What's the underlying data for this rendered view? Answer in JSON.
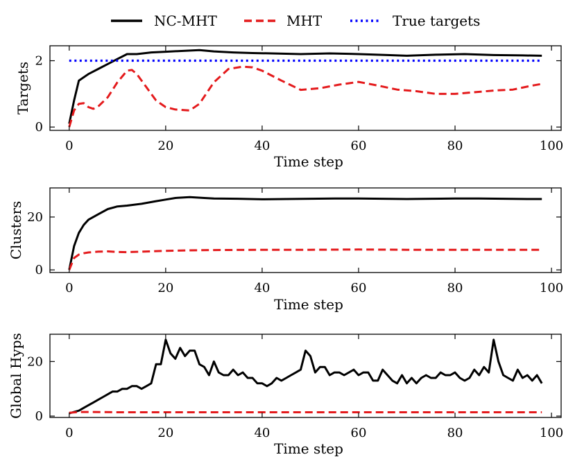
{
  "chart_data": {
    "type": "line",
    "legend": {
      "placement": "top-center",
      "entries": [
        {
          "label": "NC-MHT",
          "color": "#000000",
          "style": "solid"
        },
        {
          "label": "MHT",
          "color": "#e41a1c",
          "style": "dashed"
        },
        {
          "label": "True targets",
          "color": "#0000ff",
          "style": "dotted"
        }
      ]
    },
    "subplots": [
      {
        "id": "targets",
        "xlabel": "Time step",
        "ylabel": "Targets",
        "xlim": [
          -4,
          102
        ],
        "ylim": [
          -0.1,
          2.45
        ],
        "xticks": [
          0,
          20,
          40,
          60,
          80,
          100
        ],
        "yticks": [
          0,
          2
        ],
        "series": [
          {
            "name": "NC-MHT",
            "color": "#000000",
            "style": "solid",
            "x": [
              0,
              1,
              2,
              4,
              6,
              8,
              10,
              12,
              14,
              17,
              20,
              24,
              27,
              30,
              34,
              38,
              42,
              48,
              54,
              60,
              66,
              70,
              76,
              82,
              88,
              94,
              98
            ],
            "y": [
              0.1,
              0.8,
              1.4,
              1.6,
              1.75,
              1.9,
              2.05,
              2.2,
              2.2,
              2.25,
              2.27,
              2.3,
              2.32,
              2.28,
              2.25,
              2.23,
              2.22,
              2.2,
              2.22,
              2.2,
              2.17,
              2.15,
              2.18,
              2.2,
              2.17,
              2.16,
              2.15
            ]
          },
          {
            "name": "MHT",
            "color": "#e41a1c",
            "style": "dashed",
            "x": [
              0,
              1,
              2,
              3,
              4,
              5,
              6,
              8,
              10,
              12,
              13,
              14,
              16,
              18,
              20,
              22,
              25,
              27,
              30,
              33,
              36,
              38,
              40,
              44,
              48,
              52,
              56,
              60,
              64,
              68,
              72,
              76,
              80,
              84,
              88,
              92,
              96,
              98
            ],
            "y": [
              0.0,
              0.5,
              0.7,
              0.72,
              0.6,
              0.55,
              0.62,
              0.9,
              1.35,
              1.7,
              1.72,
              1.6,
              1.2,
              0.8,
              0.6,
              0.53,
              0.5,
              0.7,
              1.35,
              1.75,
              1.82,
              1.8,
              1.7,
              1.4,
              1.12,
              1.17,
              1.28,
              1.36,
              1.25,
              1.13,
              1.08,
              1.0,
              1.0,
              1.05,
              1.1,
              1.13,
              1.25,
              1.3
            ]
          },
          {
            "name": "True targets",
            "color": "#0000ff",
            "style": "dotted",
            "x": [
              0,
              98
            ],
            "y": [
              2,
              2
            ]
          }
        ]
      },
      {
        "id": "clusters",
        "xlabel": "Time step",
        "ylabel": "Clusters",
        "xlim": [
          -4,
          102
        ],
        "ylim": [
          -1,
          31
        ],
        "xticks": [
          0,
          20,
          40,
          60,
          80,
          100
        ],
        "yticks": [
          0,
          20
        ],
        "series": [
          {
            "name": "NC-MHT",
            "color": "#000000",
            "style": "solid",
            "x": [
              0,
              1,
              2,
              3,
              4,
              6,
              8,
              10,
              12,
              15,
              18,
              20,
              22,
              25,
              28,
              30,
              35,
              40,
              45,
              50,
              55,
              60,
              65,
              70,
              75,
              80,
              85,
              90,
              95,
              98
            ],
            "y": [
              0,
              9,
              14,
              17,
              19,
              21,
              23,
              24,
              24.3,
              25,
              26,
              26.6,
              27.2,
              27.5,
              27.2,
              27.0,
              26.9,
              26.7,
              26.8,
              26.9,
              27.0,
              27.0,
              26.9,
              26.8,
              26.9,
              27.0,
              27.0,
              26.9,
              26.8,
              26.8
            ]
          },
          {
            "name": "MHT",
            "color": "#e41a1c",
            "style": "dashed",
            "x": [
              0,
              1,
              2,
              3,
              4,
              6,
              8,
              10,
              12,
              15,
              20,
              25,
              30,
              40,
              50,
              60,
              70,
              80,
              90,
              98
            ],
            "y": [
              0,
              4.5,
              5.8,
              6.3,
              6.6,
              6.9,
              7.0,
              6.8,
              6.7,
              6.9,
              7.2,
              7.4,
              7.5,
              7.6,
              7.6,
              7.7,
              7.6,
              7.6,
              7.6,
              7.6
            ]
          }
        ]
      },
      {
        "id": "global-hyps",
        "xlabel": "Time step",
        "ylabel": "Global Hyps",
        "xlim": [
          -4,
          102
        ],
        "ylim": [
          -0.5,
          30
        ],
        "xticks": [
          0,
          20,
          40,
          60,
          80,
          100
        ],
        "yticks": [
          0,
          20
        ],
        "series": [
          {
            "name": "NC-MHT",
            "color": "#000000",
            "style": "solid",
            "x": [
              0,
              1,
              2,
              3,
              4,
              5,
              6,
              7,
              8,
              9,
              10,
              11,
              12,
              13,
              14,
              15,
              16,
              17,
              18,
              19,
              20,
              21,
              22,
              23,
              24,
              25,
              26,
              27,
              28,
              29,
              30,
              31,
              32,
              33,
              34,
              35,
              36,
              37,
              38,
              39,
              40,
              41,
              42,
              43,
              44,
              45,
              46,
              47,
              48,
              49,
              50,
              51,
              52,
              53,
              54,
              55,
              56,
              57,
              58,
              59,
              60,
              61,
              62,
              63,
              64,
              65,
              66,
              67,
              68,
              69,
              70,
              71,
              72,
              73,
              74,
              75,
              76,
              77,
              78,
              79,
              80,
              81,
              82,
              83,
              84,
              85,
              86,
              87,
              88,
              89,
              90,
              91,
              92,
              93,
              94,
              95,
              96,
              97,
              98
            ],
            "y": [
              1,
              1.5,
              2,
              3,
              4,
              5,
              6,
              7,
              8,
              9,
              9,
              10,
              10,
              11,
              11,
              10,
              11,
              12,
              19,
              19,
              28,
              23,
              21,
              25,
              22,
              24,
              24,
              19,
              18,
              15,
              20,
              16,
              15,
              15,
              17,
              15,
              16,
              14,
              14,
              12,
              12,
              11,
              12,
              14,
              13,
              14,
              15,
              16,
              17,
              24,
              22,
              16,
              18,
              18,
              15,
              16,
              16,
              15,
              16,
              17,
              15,
              16,
              16,
              13,
              13,
              17,
              15,
              13,
              12,
              15,
              12,
              14,
              12,
              14,
              15,
              14,
              14,
              16,
              15,
              15,
              16,
              14,
              13,
              14,
              17,
              15,
              18,
              16,
              28,
              20,
              15,
              14,
              13,
              17,
              14,
              15,
              13,
              15,
              12
            ]
          },
          {
            "name": "MHT",
            "color": "#e41a1c",
            "style": "dashed",
            "x": [
              0,
              2,
              5,
              10,
              20,
              30,
              40,
              50,
              60,
              70,
              80,
              90,
              98
            ],
            "y": [
              1.2,
              1.5,
              1.5,
              1.4,
              1.4,
              1.4,
              1.4,
              1.4,
              1.4,
              1.4,
              1.4,
              1.4,
              1.4
            ]
          }
        ]
      }
    ]
  }
}
